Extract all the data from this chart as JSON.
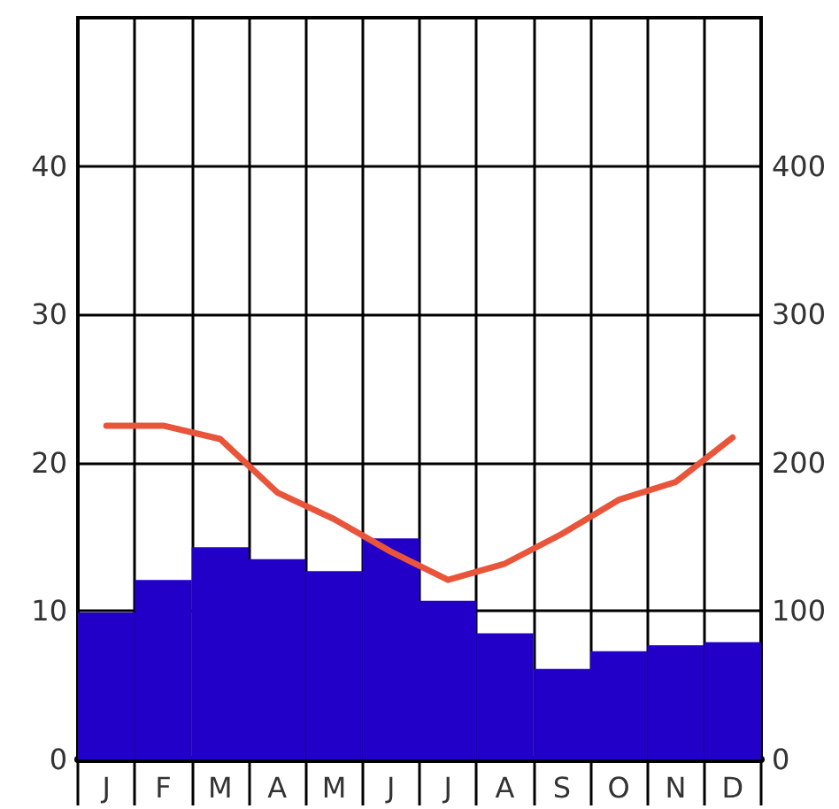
{
  "chart_data": {
    "type": "bar",
    "categories": [
      "J",
      "F",
      "M",
      "A",
      "M",
      "J",
      "J",
      "A",
      "S",
      "O",
      "N",
      "D"
    ],
    "series": [
      {
        "axis": "y2",
        "color": "#2200c8",
        "values": [
          99,
          121,
          143,
          135,
          127,
          149,
          107,
          85,
          61,
          73,
          77,
          79
        ]
      },
      {
        "type": "line",
        "color": "#e8553a",
        "values": [
          22.5,
          22.5,
          21.6,
          18.0,
          16.2,
          14.0,
          12.1,
          13.2,
          15.2,
          17.5,
          18.7,
          21.7
        ]
      }
    ],
    "ylim": [
      0,
      50
    ],
    "yticks": [
      0,
      10,
      20,
      30,
      40
    ],
    "y2lim": [
      0,
      500
    ],
    "y2ticks": [
      0,
      100,
      200,
      300,
      400
    ],
    "grid": true,
    "marker": "none",
    "line_style": "solid"
  }
}
